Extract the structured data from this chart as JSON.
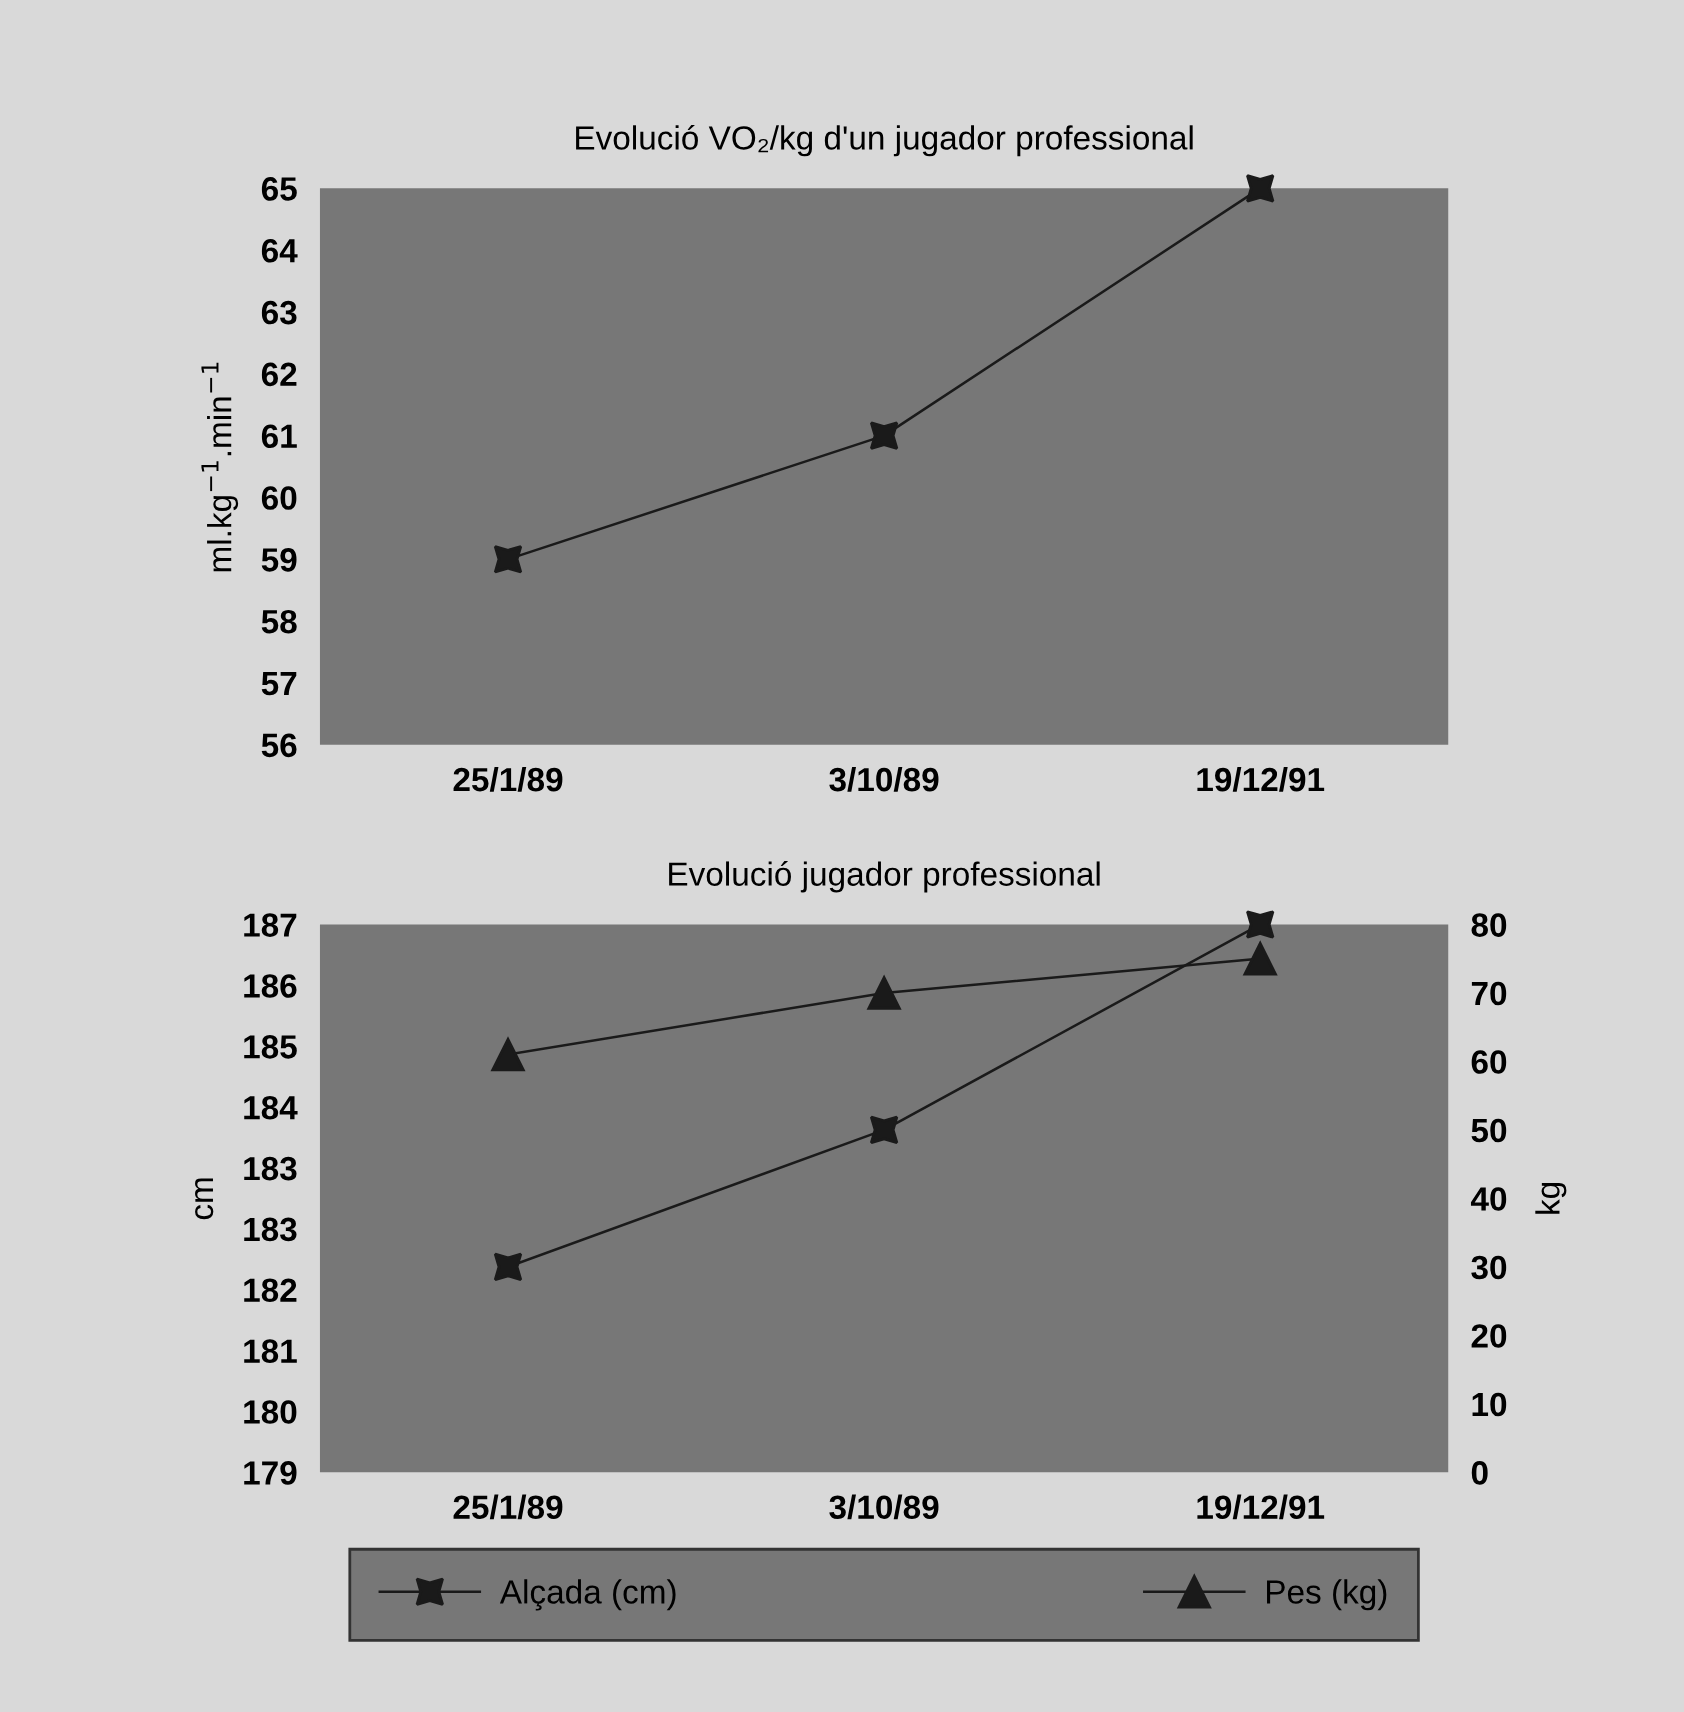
{
  "chart_data": [
    {
      "type": "line",
      "title": "Evolució VO₂/kg d'un jugador professional",
      "ylabel": "ml.kg$^{−1}$.min$^{−1}$",
      "categories": [
        "25/1/89",
        "3/10/89",
        "19/12/91"
      ],
      "series": [
        {
          "color": "#1a1a1a",
          "values": [
            59,
            61,
            65
          ]
        }
      ],
      "marker": "star",
      "ylim": [
        56,
        65
      ],
      "yticks": [
        56,
        57,
        58,
        59,
        60,
        61,
        62,
        63,
        64,
        65
      ],
      "grid": false,
      "legend": false
    },
    {
      "type": "line",
      "title": "Evolució jugador professional",
      "ylabel": "cm",
      "y2label": "kg",
      "categories": [
        "25/1/89",
        "3/10/89",
        "19/12/91"
      ],
      "series": [
        {
          "name": "Alçada (cm)",
          "color": "#1a1a1a",
          "marker": "star",
          "values": [
            182.0,
            184.0,
            187.0
          ]
        },
        {
          "name": "Pes (kg)",
          "color": "#1a1a1a",
          "marker": "triangle",
          "axis": "y2",
          "values": [
            61,
            70,
            75
          ]
        }
      ],
      "ylim": [
        179,
        187
      ],
      "yticks": [
        {
          "value": 179,
          "label": "179"
        },
        {
          "value": 179.889,
          "label": "180"
        },
        {
          "value": 180.778,
          "label": "181"
        },
        {
          "value": 181.667,
          "label": "182"
        },
        {
          "value": 182.556,
          "label": "183"
        },
        {
          "value": 183.444,
          "label": "183"
        },
        {
          "value": 184.333,
          "label": "184"
        },
        {
          "value": 185.222,
          "label": "185"
        },
        {
          "value": 186.111,
          "label": "186"
        },
        {
          "value": 187,
          "label": "187"
        }
      ],
      "y2lim": [
        0,
        80
      ],
      "y2ticks": [
        0,
        10,
        20,
        30,
        40,
        50,
        60,
        70,
        80
      ],
      "grid": false,
      "legend": "bottom"
    }
  ]
}
